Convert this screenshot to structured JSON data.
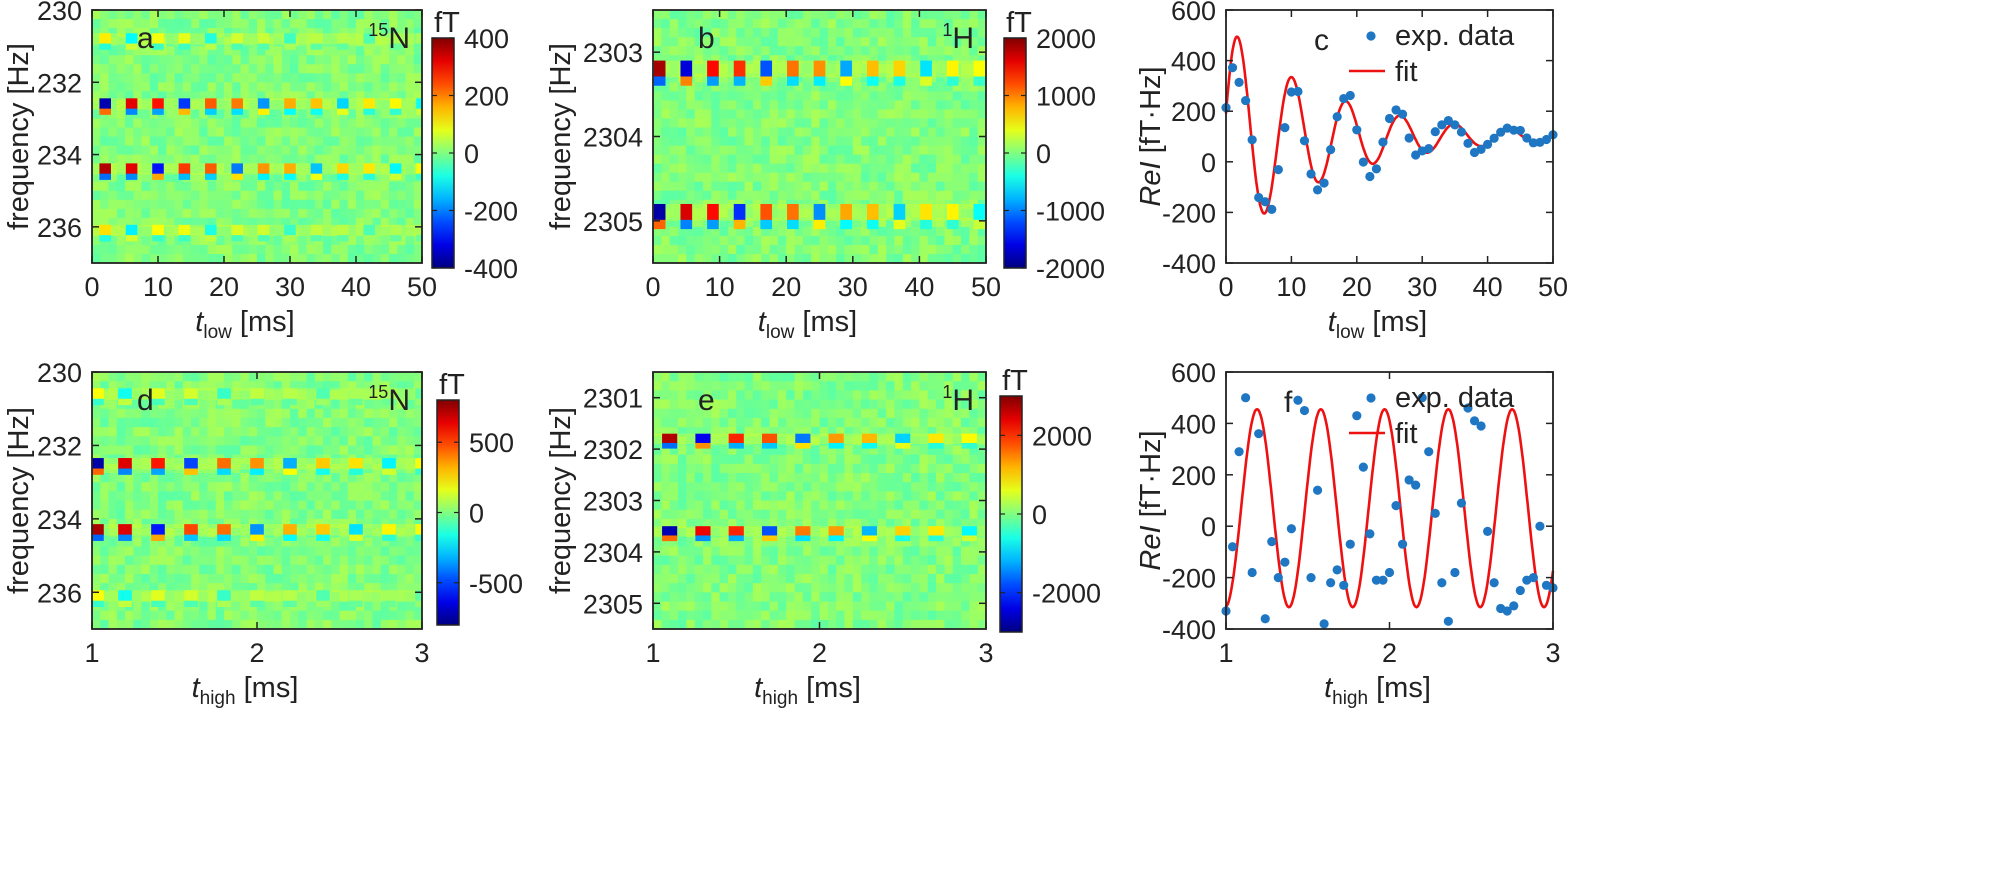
{
  "chart_data": [
    {
      "id": "a",
      "type": "heatmap",
      "panel_label": "a",
      "nucleus": {
        "mass": "15",
        "symbol": "N"
      },
      "x_var": "t",
      "x_sub": "low",
      "x_unit": "[ms]",
      "ylabel": "frequency [Hz]",
      "xlim": [
        0,
        50
      ],
      "ylim": [
        230,
        237
      ],
      "xticks": [
        "0",
        "10",
        "20",
        "30",
        "40",
        "50"
      ],
      "yticks": [
        "230",
        "232",
        "234",
        "236"
      ],
      "colorbar": {
        "unit": "fT",
        "range": [
          -400,
          400
        ],
        "ticks": [
          "400",
          "200",
          "0",
          "-200",
          "-400"
        ]
      },
      "peaks": [
        {
          "f": 230.8,
          "amp": 120
        },
        {
          "f": 232.6,
          "amp": 380
        },
        {
          "f": 234.4,
          "amp": 380
        },
        {
          "f": 236.1,
          "amp": 130
        }
      ],
      "pulse_times": [
        2,
        6,
        10,
        14,
        18,
        22,
        26,
        30,
        34,
        38,
        42,
        46,
        50
      ]
    },
    {
      "id": "b",
      "type": "heatmap",
      "panel_label": "b",
      "nucleus": {
        "mass": "1",
        "symbol": "H"
      },
      "x_var": "t",
      "x_sub": "low",
      "x_unit": "[ms]",
      "ylabel": "frequency [Hz]",
      "xlim": [
        0,
        50
      ],
      "ylim": [
        2302.5,
        2305.5
      ],
      "xticks": [
        "0",
        "10",
        "20",
        "30",
        "40",
        "50"
      ],
      "yticks": [
        "2303",
        "2304",
        "2305"
      ],
      "colorbar": {
        "unit": "fT",
        "range": [
          -2000,
          2000
        ],
        "ticks": [
          "2000",
          "1000",
          "0",
          "-1000",
          "-2000"
        ]
      },
      "peaks": [
        {
          "f": 2303.2,
          "amp": 1900
        },
        {
          "f": 2304.9,
          "amp": 1900
        }
      ],
      "pulse_times": [
        1,
        5,
        9,
        13,
        17,
        21,
        25,
        29,
        33,
        37,
        41,
        45,
        49
      ]
    },
    {
      "id": "c",
      "type": "scatter",
      "panel_label": "c",
      "x_var": "t",
      "x_sub": "low",
      "x_unit": "[ms]",
      "ylabel_italic": "ReI",
      "ylabel_rest": " [fT·Hz]",
      "xlim": [
        0,
        50
      ],
      "ylim": [
        -400,
        600
      ],
      "xticks": [
        "0",
        "10",
        "20",
        "30",
        "40",
        "50"
      ],
      "yticks": [
        "-400",
        "-200",
        "0",
        "200",
        "400",
        "600"
      ],
      "legend": {
        "data_label": "exp. data",
        "fit_label": "fit"
      },
      "fit": {
        "A": 440,
        "tau": 16,
        "period": 8.3,
        "offset": 100
      },
      "x": [
        0,
        1,
        2,
        3,
        4,
        5,
        6,
        7,
        8,
        9,
        10,
        11,
        12,
        13,
        14,
        15,
        16,
        17,
        18,
        19,
        20,
        21,
        22,
        23,
        24,
        25,
        26,
        27,
        28,
        29,
        30,
        31,
        32,
        33,
        34,
        35,
        36,
        37,
        38,
        39,
        40,
        41,
        42,
        43,
        44,
        45,
        46,
        47,
        48,
        49,
        50
      ],
      "y": [
        214,
        372,
        314,
        242,
        87,
        -141,
        -158,
        -188,
        -31,
        135,
        276,
        278,
        83,
        -48,
        -111,
        -84,
        48,
        178,
        250,
        262,
        126,
        -1,
        -58,
        -28,
        78,
        171,
        205,
        188,
        94,
        27,
        43,
        52,
        119,
        146,
        163,
        146,
        118,
        73,
        37,
        49,
        69,
        93,
        117,
        133,
        125,
        124,
        94,
        75,
        77,
        88,
        107
      ]
    },
    {
      "id": "d",
      "type": "heatmap",
      "panel_label": "d",
      "nucleus": {
        "mass": "15",
        "symbol": "N"
      },
      "x_var": "t",
      "x_sub": "high",
      "x_unit": "[ms]",
      "ylabel": "frequency [Hz]",
      "xlim": [
        1,
        3
      ],
      "ylim": [
        230,
        237
      ],
      "xticks": [
        "1",
        "2",
        "3"
      ],
      "yticks": [
        "230",
        "232",
        "234",
        "236"
      ],
      "colorbar": {
        "unit": "fT",
        "range": [
          -800,
          800
        ],
        "ticks": [
          "500",
          "0",
          "-500"
        ]
      },
      "peaks": [
        {
          "f": 230.6,
          "amp": 200
        },
        {
          "f": 232.5,
          "amp": 750
        },
        {
          "f": 234.3,
          "amp": 750
        },
        {
          "f": 236.1,
          "amp": 200
        }
      ],
      "pulse_times": [
        1.03,
        1.2,
        1.4,
        1.6,
        1.8,
        2.0,
        2.2,
        2.4,
        2.6,
        2.8,
        3.0
      ]
    },
    {
      "id": "e",
      "type": "heatmap",
      "panel_label": "e",
      "nucleus": {
        "mass": "1",
        "symbol": "H"
      },
      "x_var": "t",
      "x_sub": "high",
      "x_unit": "[ms]",
      "ylabel": "frequency [Hz]",
      "xlim": [
        1,
        3
      ],
      "ylim": [
        2300.5,
        2305.5
      ],
      "xticks": [
        "1",
        "2",
        "3"
      ],
      "yticks": [
        "2301",
        "2302",
        "2303",
        "2304",
        "2305"
      ],
      "colorbar": {
        "unit": "fT",
        "range": [
          -3000,
          3000
        ],
        "ticks": [
          "2000",
          "0",
          "-2000"
        ]
      },
      "peaks": [
        {
          "f": 2301.8,
          "amp": 2900
        },
        {
          "f": 2303.6,
          "amp": 2900
        }
      ],
      "pulse_times": [
        1.1,
        1.3,
        1.5,
        1.7,
        1.9,
        2.1,
        2.3,
        2.5,
        2.7,
        2.9
      ]
    },
    {
      "id": "f",
      "type": "scatter",
      "panel_label": "f",
      "x_var": "t",
      "x_sub": "high",
      "x_unit": "[ms]",
      "ylabel_italic": "ReI",
      "ylabel_rest": " [fT·Hz]",
      "xlim": [
        1,
        3
      ],
      "ylim": [
        -400,
        600
      ],
      "xticks": [
        "1",
        "2",
        "3"
      ],
      "yticks": [
        "-400",
        "-200",
        "0",
        "200",
        "400",
        "600"
      ],
      "legend": {
        "data_label": "exp. data",
        "fit_label": "fit"
      },
      "fit": {
        "A": 385,
        "offset": 70,
        "period": 0.39,
        "phase_x": 1.19
      },
      "x": [
        1.0,
        1.04,
        1.08,
        1.12,
        1.16,
        1.2,
        1.24,
        1.28,
        1.32,
        1.36,
        1.4,
        1.44,
        1.48,
        1.52,
        1.56,
        1.6,
        1.64,
        1.68,
        1.72,
        1.76,
        1.8,
        1.84,
        1.88,
        1.92,
        1.96,
        2.0,
        2.04,
        2.08,
        2.12,
        2.16,
        2.2,
        2.24,
        2.28,
        2.32,
        2.36,
        2.4,
        2.44,
        2.48,
        2.52,
        2.56,
        2.6,
        2.64,
        2.68,
        2.72,
        2.76,
        2.8,
        2.84,
        2.88,
        2.92,
        2.96,
        3.0
      ],
      "y": [
        -330,
        -80,
        290,
        500,
        -180,
        360,
        -360,
        -60,
        -200,
        -140,
        -10,
        490,
        450,
        -200,
        140,
        -380,
        -220,
        -170,
        -230,
        -70,
        430,
        230,
        -30,
        -210,
        -210,
        -180,
        80,
        -70,
        180,
        160,
        500,
        290,
        50,
        -220,
        -370,
        -180,
        90,
        460,
        410,
        390,
        -20,
        -220,
        -320,
        -330,
        -310,
        -250,
        -210,
        -200,
        0,
        -230,
        -240
      ]
    }
  ]
}
